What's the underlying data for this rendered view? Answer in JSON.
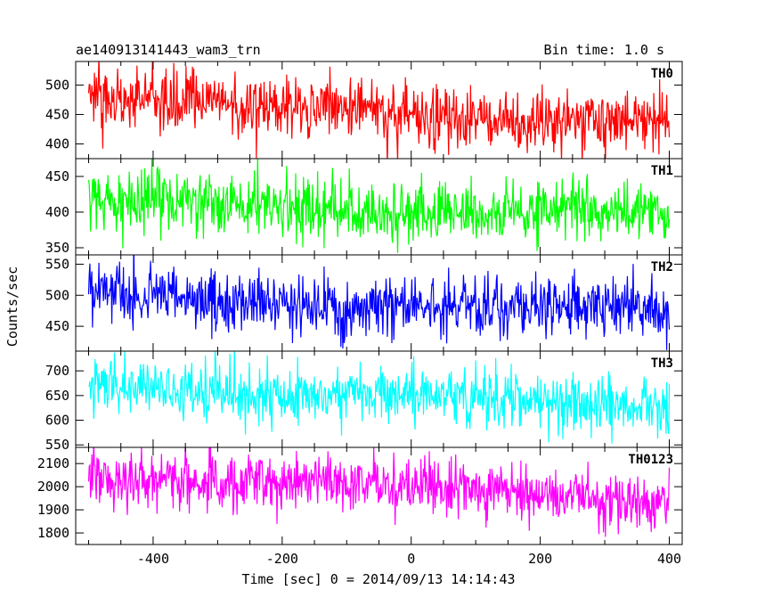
{
  "header": {
    "left_title": "ae140913141443_wam3_trn",
    "right_title": "Bin time: 1.0 s"
  },
  "chart_data": {
    "type": "line",
    "title": "ae140913141443_wam3_trn",
    "subtitle": "Bin time: 1.0 s",
    "xlabel": "Time [sec] 0 = 2014/09/13 14:14:43",
    "ylabel": "Counts/sec",
    "xlim": [
      -520,
      420
    ],
    "xticks": [
      -400,
      -200,
      0,
      200,
      400
    ],
    "x_start": -500,
    "x_end": 400,
    "bin": 1.0,
    "panels": [
      {
        "name": "TH0",
        "color": "#ff0000",
        "ylim": [
          375,
          540
        ],
        "yticks": [
          400,
          450,
          500
        ],
        "mean_start": 475,
        "mean_end": 435,
        "amplitude": 27
      },
      {
        "name": "TH1",
        "color": "#00ff00",
        "ylim": [
          340,
          475
        ],
        "yticks": [
          350,
          400,
          450
        ],
        "mean_start": 415,
        "mean_end": 395,
        "amplitude": 22
      },
      {
        "name": "TH2",
        "color": "#0000ff",
        "ylim": [
          410,
          565
        ],
        "yticks": [
          450,
          500,
          550
        ],
        "mean_start": 500,
        "mean_end": 470,
        "amplitude": 25
      },
      {
        "name": "TH3",
        "color": "#00ffff",
        "ylim": [
          545,
          740
        ],
        "yticks": [
          550,
          600,
          650,
          700
        ],
        "mean_start": 670,
        "mean_end": 625,
        "amplitude": 30
      },
      {
        "name": "TH0123",
        "color": "#ff00ff",
        "ylim": [
          1750,
          2170
        ],
        "yticks": [
          1800,
          1900,
          2000,
          2100
        ],
        "mean_start": 2060,
        "mean_end": 1940,
        "amplitude": 60
      }
    ]
  }
}
